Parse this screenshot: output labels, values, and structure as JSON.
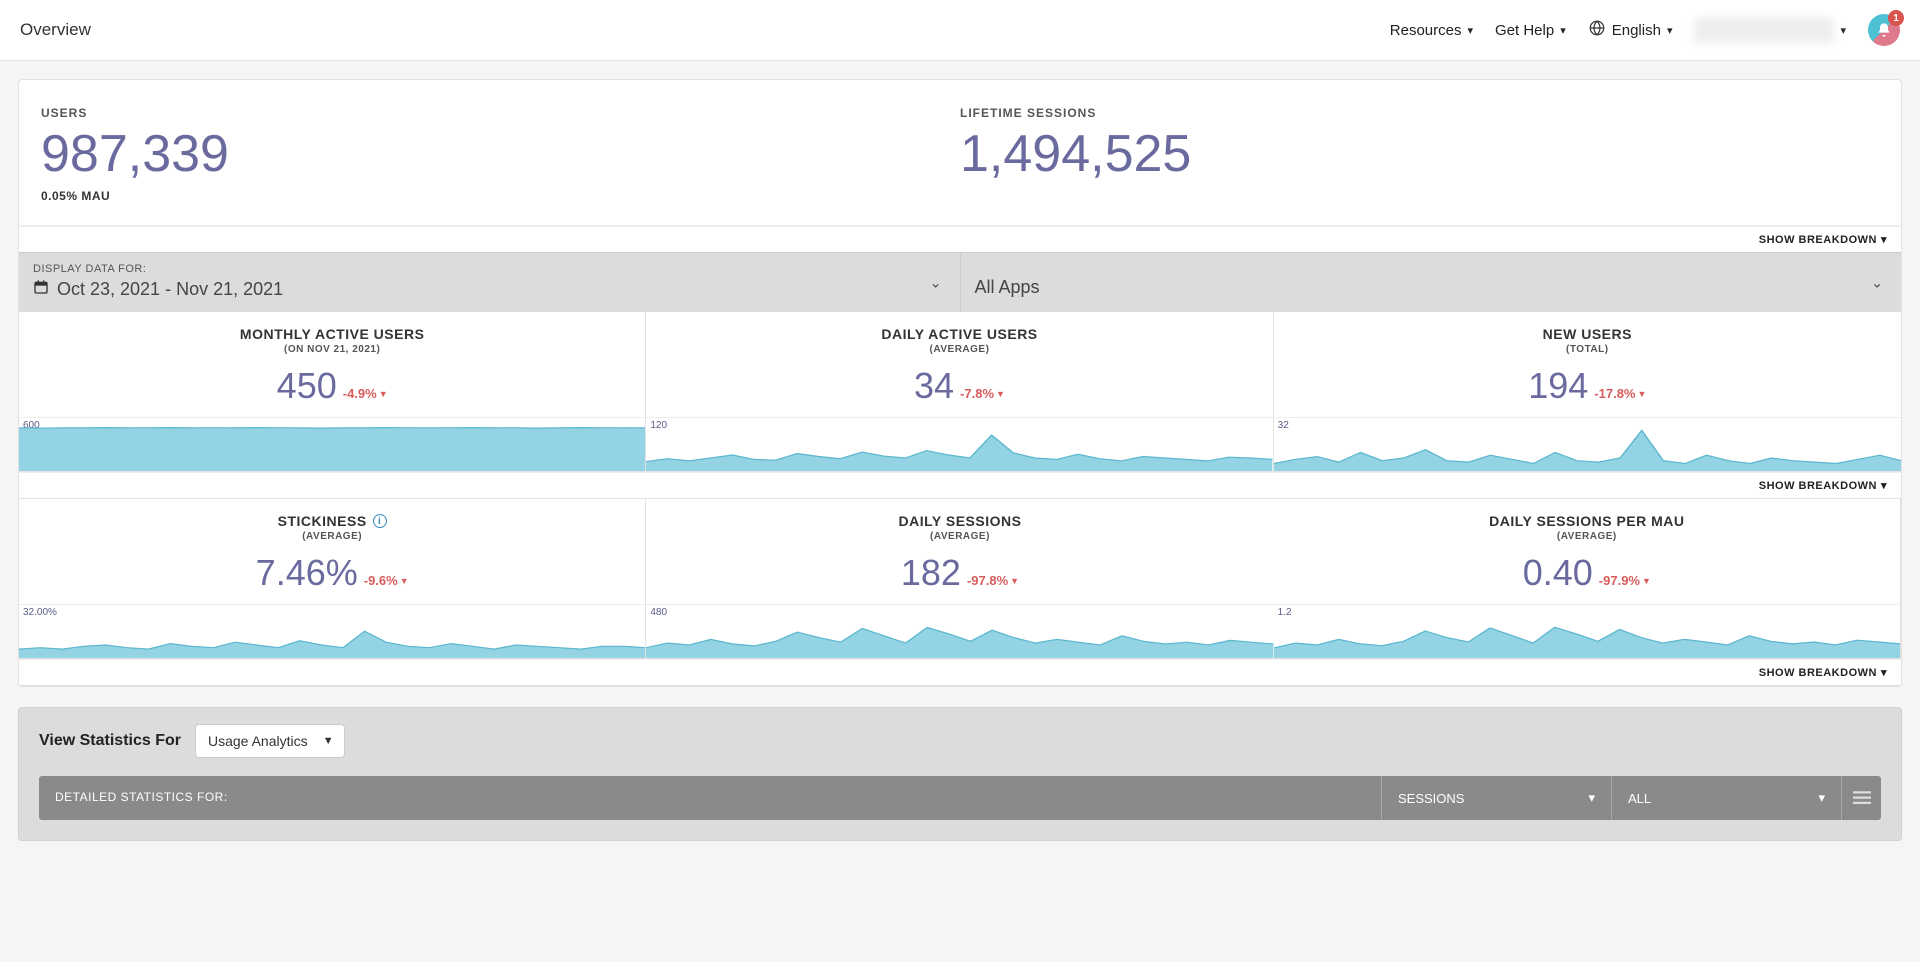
{
  "topbar": {
    "title": "Overview",
    "resources_label": "Resources",
    "help_label": "Get Help",
    "language_label": "English",
    "notification_count": "1"
  },
  "summary": {
    "users_label": "USERS",
    "users_value": "987,339",
    "users_sub": "0.05% MAU",
    "sessions_label": "LIFETIME SESSIONS",
    "sessions_value": "1,494,525",
    "breakdown_label": "SHOW BREAKDOWN"
  },
  "filters": {
    "caption": "DISPLAY DATA FOR:",
    "date_range": "Oct 23, 2021 - Nov 21, 2021",
    "apps_value": "All Apps"
  },
  "metrics": [
    {
      "title": "MONTHLY ACTIVE USERS",
      "subtitle": "(ON NOV 21, 2021)",
      "value": "450",
      "delta": "-4.9%",
      "axis": "600",
      "info": false,
      "spark": {
        "type": "area",
        "fill": "#93d3e3",
        "stroke": "#5bb7cf",
        "points": [
          560,
          555,
          560,
          558,
          562,
          558,
          560,
          562,
          558,
          560,
          558,
          562,
          560,
          558,
          556,
          560,
          558,
          562,
          560,
          558,
          560,
          562,
          558,
          560,
          556,
          558,
          562,
          560,
          558,
          560
        ],
        "ymax": 600
      }
    },
    {
      "title": "DAILY ACTIVE USERS",
      "subtitle": "(AVERAGE)",
      "value": "34",
      "delta": "-7.8%",
      "axis": "120",
      "info": false,
      "spark": {
        "type": "area",
        "fill": "#93d3e3",
        "stroke": "#5bb7cf",
        "points": [
          20,
          28,
          22,
          30,
          38,
          26,
          24,
          42,
          34,
          28,
          46,
          35,
          30,
          50,
          38,
          30,
          92,
          44,
          30,
          26,
          40,
          28,
          22,
          34,
          30,
          26,
          22,
          32,
          30,
          26
        ],
        "ymax": 120
      }
    },
    {
      "title": "NEW USERS",
      "subtitle": "(TOTAL)",
      "value": "194",
      "delta": "-17.8%",
      "axis": "32",
      "info": false,
      "spark": {
        "type": "area",
        "fill": "#93d3e3",
        "stroke": "#5bb7cf",
        "points": [
          4,
          7,
          9,
          5,
          12,
          6,
          8,
          14,
          6,
          5,
          10,
          7,
          4,
          12,
          6,
          5,
          8,
          28,
          6,
          4,
          10,
          6,
          4,
          8,
          6,
          5,
          4,
          7,
          10,
          6
        ],
        "ymax": 32
      }
    },
    {
      "title": "STICKINESS",
      "subtitle": "(AVERAGE)",
      "value": "7.46%",
      "delta": "-9.6%",
      "axis": "32.00%",
      "info": true,
      "spark": {
        "type": "area",
        "fill": "#93d3e3",
        "stroke": "#5bb7cf",
        "points": [
          5,
          6,
          5,
          7,
          8,
          6,
          5,
          9,
          7,
          6,
          10,
          8,
          6,
          11,
          8,
          6,
          18,
          10,
          7,
          6,
          9,
          7,
          5,
          8,
          7,
          6,
          5,
          7,
          7,
          6
        ],
        "ymax": 32
      }
    },
    {
      "title": "DAILY SESSIONS",
      "subtitle": "(AVERAGE)",
      "value": "182",
      "delta": "-97.8%",
      "axis": "480",
      "info": false,
      "spark": {
        "type": "area",
        "fill": "#93d3e3",
        "stroke": "#5bb7cf",
        "points": [
          90,
          140,
          120,
          180,
          130,
          110,
          160,
          260,
          200,
          150,
          300,
          220,
          140,
          310,
          240,
          160,
          280,
          200,
          140,
          180,
          150,
          120,
          220,
          160,
          130,
          150,
          120,
          170,
          150,
          130
        ],
        "ymax": 480
      }
    },
    {
      "title": "DAILY SESSIONS PER MAU",
      "subtitle": "(AVERAGE)",
      "value": "0.40",
      "delta": "-97.9%",
      "axis": "1.2",
      "info": false,
      "spark": {
        "type": "area",
        "fill": "#93d3e3",
        "stroke": "#5bb7cf",
        "points": [
          0.22,
          0.35,
          0.3,
          0.45,
          0.33,
          0.28,
          0.4,
          0.68,
          0.5,
          0.38,
          0.76,
          0.56,
          0.35,
          0.78,
          0.6,
          0.4,
          0.72,
          0.5,
          0.35,
          0.45,
          0.38,
          0.3,
          0.55,
          0.4,
          0.33,
          0.38,
          0.3,
          0.43,
          0.38,
          0.33
        ],
        "ymax": 1.2
      }
    }
  ],
  "metric_breakdown1": "SHOW BREAKDOWN",
  "metric_breakdown2": "SHOW BREAKDOWN",
  "stats": {
    "view_label": "View Statistics For",
    "view_value": "Usage Analytics",
    "detail_label": "DETAILED STATISTICS FOR:",
    "dd1_value": "SESSIONS",
    "dd2_value": "ALL"
  }
}
